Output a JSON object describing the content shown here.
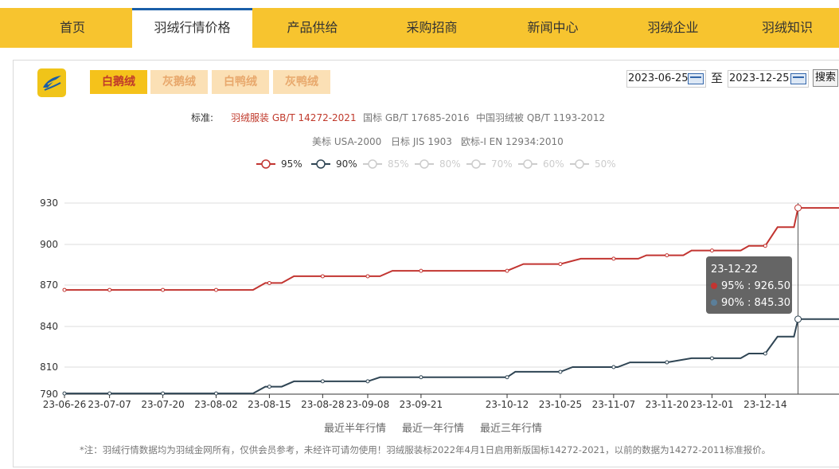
{
  "nav": {
    "items": [
      "首页",
      "羽绒行情价格",
      "产品供给",
      "采购招商",
      "新闻中心",
      "羽绒企业",
      "羽绒知识"
    ],
    "active_index": 1
  },
  "product_tabs": [
    {
      "label": "白鹅绒",
      "active": true
    },
    {
      "label": "灰鹅绒",
      "active": false
    },
    {
      "label": "白鸭绒",
      "active": false
    },
    {
      "label": "灰鸭绒",
      "active": false
    }
  ],
  "date_range": {
    "start": "2023-06-25",
    "separator": "至",
    "end": "2023-12-25",
    "search_label": "搜索"
  },
  "standards": {
    "label": "标准:",
    "items": [
      "羽绒服装 GB/T 14272-2021",
      "国标 GB/T 17685-2016",
      "中国羽绒被 QB/T 1193-2012",
      "美标 USA-2000",
      "日标 JIS 1903",
      "欧标-I EN 12934:2010"
    ]
  },
  "legend": [
    {
      "label": "95%",
      "color": "#c23531",
      "active": true
    },
    {
      "label": "90%",
      "color": "#2f4554",
      "active": true
    },
    {
      "label": "85%",
      "color": "#cccccc",
      "active": false
    },
    {
      "label": "80%",
      "color": "#cccccc",
      "active": false
    },
    {
      "label": "70%",
      "color": "#cccccc",
      "active": false
    },
    {
      "label": "60%",
      "color": "#cccccc",
      "active": false
    },
    {
      "label": "50%",
      "color": "#cccccc",
      "active": false
    }
  ],
  "tooltip": {
    "date": "23-12-22",
    "rows": [
      {
        "text": "95% : 926.50",
        "color": "#c23531"
      },
      {
        "text": "90% : 845.30",
        "color": "#2f4554"
      }
    ]
  },
  "periods": [
    "最近半年行情",
    "最近一年行情",
    "最近三年行情"
  ],
  "footnote": "*注：羽绒行情数据均为羽绒金网所有，仅供会员参考，未经许可请勿使用！羽绒服装标2022年4月1日启用新版国标14272-2021，以前的数据为14272-2011标准报价。",
  "chart_data": {
    "type": "line",
    "x_start": "2023-06-26",
    "x_end": "2023-12-25",
    "x_tick_labels": [
      "23-06-26",
      "23-07-07",
      "23-07-20",
      "23-08-02",
      "23-08-15",
      "23-08-28",
      "23-09-08",
      "23-09-21",
      "23-10-12",
      "23-10-25",
      "23-11-07",
      "23-11-20",
      "23-12-01",
      "23-12-14"
    ],
    "y_ticks": [
      790,
      810,
      840,
      870,
      900,
      930
    ],
    "ylim": [
      790,
      935
    ],
    "grid": true,
    "legend_position": "top",
    "series": [
      {
        "name": "95%",
        "color": "#c23531",
        "points": [
          [
            "2023-06-26",
            866.5
          ],
          [
            "2023-08-11",
            866.5
          ],
          [
            "2023-08-14",
            871.5
          ],
          [
            "2023-08-18",
            871.5
          ],
          [
            "2023-08-21",
            876.5
          ],
          [
            "2023-09-11",
            876.5
          ],
          [
            "2023-09-14",
            880.5
          ],
          [
            "2023-10-12",
            880.5
          ],
          [
            "2023-10-16",
            885.5
          ],
          [
            "2023-10-25",
            885.5
          ],
          [
            "2023-10-30",
            889.5
          ],
          [
            "2023-11-13",
            889.5
          ],
          [
            "2023-11-15",
            892.0
          ],
          [
            "2023-11-24",
            892.0
          ],
          [
            "2023-11-26",
            895.5
          ],
          [
            "2023-12-08",
            895.5
          ],
          [
            "2023-12-10",
            899.0
          ],
          [
            "2023-12-14",
            899.0
          ],
          [
            "2023-12-17",
            912.5
          ],
          [
            "2023-12-21",
            912.5
          ],
          [
            "2023-12-22",
            926.5
          ],
          [
            "2023-12-25",
            926.5
          ]
        ],
        "markers": [
          [
            "2023-06-26",
            866.5
          ],
          [
            "2023-07-07",
            866.5
          ],
          [
            "2023-07-20",
            866.5
          ],
          [
            "2023-08-02",
            866.5
          ],
          [
            "2023-08-15",
            871.5
          ],
          [
            "2023-08-28",
            876.5
          ],
          [
            "2023-09-08",
            876.5
          ],
          [
            "2023-09-21",
            880.5
          ],
          [
            "2023-10-12",
            880.5
          ],
          [
            "2023-10-25",
            885.5
          ],
          [
            "2023-11-07",
            889.5
          ],
          [
            "2023-11-20",
            892.0
          ],
          [
            "2023-12-01",
            895.5
          ],
          [
            "2023-12-14",
            899.0
          ],
          [
            "2023-12-22",
            926.5
          ]
        ]
      },
      {
        "name": "90%",
        "color": "#2f4554",
        "points": [
          [
            "2023-06-26",
            790.5
          ],
          [
            "2023-08-11",
            790.5
          ],
          [
            "2023-08-14",
            795.5
          ],
          [
            "2023-08-18",
            795.5
          ],
          [
            "2023-08-21",
            799.5
          ],
          [
            "2023-09-08",
            799.5
          ],
          [
            "2023-09-11",
            802.5
          ],
          [
            "2023-10-12",
            802.5
          ],
          [
            "2023-10-14",
            806.5
          ],
          [
            "2023-10-25",
            806.5
          ],
          [
            "2023-10-28",
            810.0
          ],
          [
            "2023-11-08",
            810.0
          ],
          [
            "2023-11-11",
            813.5
          ],
          [
            "2023-11-20",
            813.5
          ],
          [
            "2023-11-26",
            816.5
          ],
          [
            "2023-12-08",
            816.5
          ],
          [
            "2023-12-10",
            820.0
          ],
          [
            "2023-12-14",
            820.0
          ],
          [
            "2023-12-17",
            832.5
          ],
          [
            "2023-12-21",
            832.5
          ],
          [
            "2023-12-22",
            845.3
          ],
          [
            "2023-12-25",
            845.3
          ]
        ],
        "markers": [
          [
            "2023-06-26",
            790.5
          ],
          [
            "2023-07-07",
            790.5
          ],
          [
            "2023-07-20",
            790.5
          ],
          [
            "2023-08-02",
            790.5
          ],
          [
            "2023-08-15",
            795.5
          ],
          [
            "2023-08-28",
            799.5
          ],
          [
            "2023-09-08",
            799.5
          ],
          [
            "2023-09-21",
            802.5
          ],
          [
            "2023-10-12",
            802.5
          ],
          [
            "2023-10-25",
            806.5
          ],
          [
            "2023-11-07",
            810.0
          ],
          [
            "2023-11-20",
            813.5
          ],
          [
            "2023-12-01",
            816.5
          ],
          [
            "2023-12-14",
            820.0
          ],
          [
            "2023-12-22",
            845.3
          ]
        ]
      }
    ],
    "highlight_date": "2023-12-22"
  }
}
